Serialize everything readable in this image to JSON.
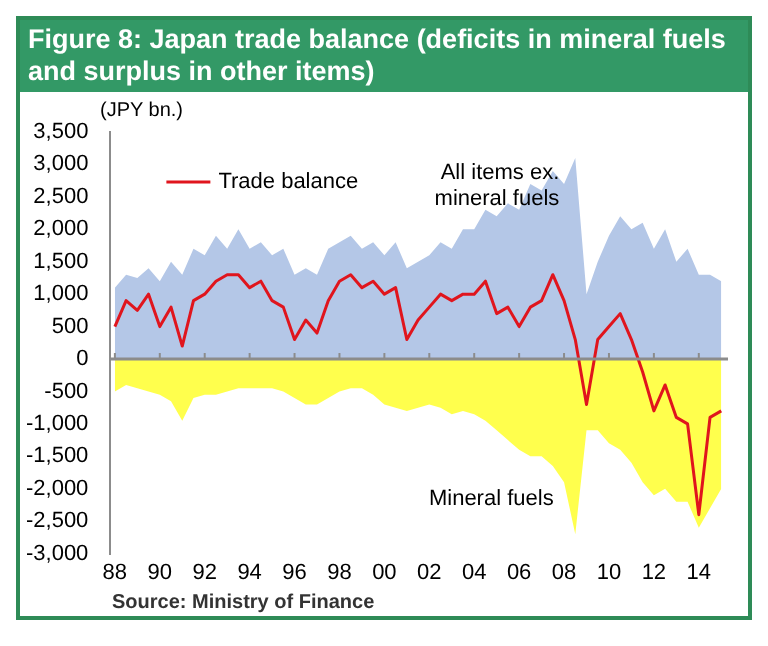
{
  "chart_data": {
    "type": "area",
    "title": "Figure 8: Japan trade balance (deficits in mineral fuels and surplus in other items)",
    "ylabel": "(JPY bn.)",
    "annotations": [
      "Source: Ministry of Finance"
    ],
    "x": [
      1988,
      1988.5,
      1989,
      1989.5,
      1990,
      1990.5,
      1991,
      1991.5,
      1992,
      1992.5,
      1993,
      1993.5,
      1994,
      1994.5,
      1995,
      1995.5,
      1996,
      1996.5,
      1997,
      1997.5,
      1998,
      1998.5,
      1999,
      1999.5,
      2000,
      2000.5,
      2001,
      2001.5,
      2002,
      2002.5,
      2003,
      2003.5,
      2004,
      2004.5,
      2005,
      2005.5,
      2006,
      2006.5,
      2007,
      2007.5,
      2008,
      2008.5,
      2009,
      2009.5,
      2010,
      2010.5,
      2011,
      2011.5,
      2012,
      2012.5,
      2013,
      2013.5,
      2014,
      2014.5,
      2015
    ],
    "series": [
      {
        "name": "All items ex. mineral fuels",
        "color": "#b4c7e7",
        "values": [
          1100,
          1300,
          1250,
          1400,
          1200,
          1500,
          1300,
          1700,
          1600,
          1900,
          1700,
          2000,
          1700,
          1800,
          1600,
          1700,
          1300,
          1400,
          1300,
          1700,
          1800,
          1900,
          1700,
          1800,
          1600,
          1800,
          1400,
          1500,
          1600,
          1800,
          1700,
          2000,
          2000,
          2300,
          2200,
          2400,
          2300,
          2700,
          2600,
          2900,
          2700,
          3100,
          1000,
          1500,
          1900,
          2200,
          2000,
          2100,
          1700,
          2000,
          1500,
          1700,
          1300,
          1300,
          1200
        ]
      },
      {
        "name": "Mineral fuels",
        "color": "#ffff4d",
        "values": [
          -500,
          -400,
          -450,
          -500,
          -550,
          -650,
          -950,
          -600,
          -550,
          -550,
          -500,
          -450,
          -450,
          -450,
          -450,
          -500,
          -600,
          -700,
          -700,
          -600,
          -500,
          -450,
          -450,
          -550,
          -700,
          -750,
          -800,
          -750,
          -700,
          -750,
          -850,
          -800,
          -850,
          -950,
          -1100,
          -1250,
          -1400,
          -1500,
          -1500,
          -1650,
          -1900,
          -2700,
          -1100,
          -1100,
          -1300,
          -1400,
          -1600,
          -1900,
          -2100,
          -2000,
          -2200,
          -2200,
          -2600,
          -2300,
          -2000
        ]
      },
      {
        "name": "Trade balance",
        "type": "line",
        "color": "#e0151d",
        "values": [
          500,
          900,
          750,
          1000,
          500,
          800,
          200,
          900,
          1000,
          1200,
          1300,
          1300,
          1100,
          1200,
          900,
          800,
          300,
          600,
          400,
          900,
          1200,
          1300,
          1100,
          1200,
          1000,
          1100,
          300,
          600,
          800,
          1000,
          900,
          1000,
          1000,
          1200,
          700,
          800,
          500,
          800,
          900,
          1300,
          900,
          300,
          -700,
          300,
          500,
          700,
          300,
          -200,
          -800,
          -400,
          -900,
          -1000,
          -2400,
          -900,
          -800
        ]
      }
    ],
    "xlim": [
      1987.8,
      2015.3
    ],
    "xticks": [
      {
        "value": 1988,
        "label": "88"
      },
      {
        "value": 1990,
        "label": "90"
      },
      {
        "value": 1992,
        "label": "92"
      },
      {
        "value": 1994,
        "label": "94"
      },
      {
        "value": 1996,
        "label": "96"
      },
      {
        "value": 1998,
        "label": "98"
      },
      {
        "value": 2000,
        "label": "00"
      },
      {
        "value": 2002,
        "label": "02"
      },
      {
        "value": 2004,
        "label": "04"
      },
      {
        "value": 2006,
        "label": "06"
      },
      {
        "value": 2008,
        "label": "08"
      },
      {
        "value": 2010,
        "label": "10"
      },
      {
        "value": 2012,
        "label": "12"
      },
      {
        "value": 2014,
        "label": "14"
      }
    ],
    "ylim": [
      -3000,
      3500
    ],
    "yticks": [
      {
        "value": -3000,
        "label": "-3,000"
      },
      {
        "value": -2500,
        "label": "-2,500"
      },
      {
        "value": -2000,
        "label": "-2,000"
      },
      {
        "value": -1500,
        "label": "-1,500"
      },
      {
        "value": -1000,
        "label": "-1,000"
      },
      {
        "value": -500,
        "label": "-500"
      },
      0,
      500,
      {
        "value": 1000,
        "label": "1,000"
      },
      {
        "value": 1500,
        "label": "1,500"
      },
      {
        "value": 2000,
        "label": "2,000"
      },
      {
        "value": 2500,
        "label": "2,500"
      },
      {
        "value": 3000,
        "label": "3,000"
      },
      {
        "value": 3500,
        "label": "3,500"
      }
    ],
    "ref_lines": [
      {
        "axis": "y",
        "value": 0,
        "color": "#8c8c8c"
      }
    ],
    "grid": false,
    "legend": "top left"
  }
}
